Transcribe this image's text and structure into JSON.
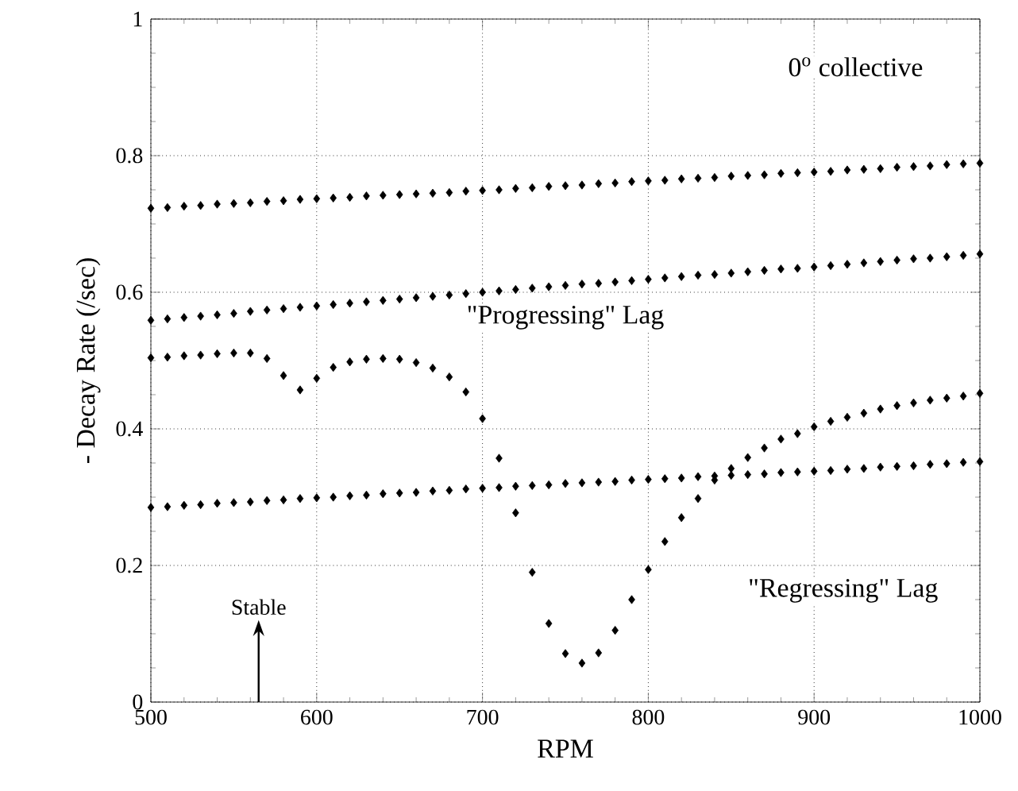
{
  "chart_data": {
    "type": "scatter",
    "xlabel": "RPM",
    "ylabel": "- Decay Rate (/sec)",
    "x": [
      500,
      510,
      520,
      530,
      540,
      550,
      560,
      570,
      580,
      590,
      600,
      610,
      620,
      630,
      640,
      650,
      660,
      670,
      680,
      690,
      700,
      710,
      720,
      730,
      740,
      750,
      760,
      770,
      780,
      790,
      800,
      810,
      820,
      830,
      840,
      850,
      860,
      870,
      880,
      890,
      900,
      910,
      920,
      930,
      940,
      950,
      960,
      970,
      980,
      990,
      1000
    ],
    "series": [
      {
        "color": "#000000",
        "values": [
          0.723,
          0.724,
          0.726,
          0.727,
          0.729,
          0.73,
          0.731,
          0.733,
          0.734,
          0.736,
          0.737,
          0.738,
          0.739,
          0.741,
          0.742,
          0.743,
          0.744,
          0.745,
          0.746,
          0.748,
          0.749,
          0.75,
          0.752,
          0.753,
          0.755,
          0.756,
          0.757,
          0.759,
          0.76,
          0.762,
          0.763,
          0.764,
          0.766,
          0.767,
          0.768,
          0.77,
          0.771,
          0.772,
          0.774,
          0.775,
          0.776,
          0.777,
          0.779,
          0.78,
          0.781,
          0.783,
          0.784,
          0.785,
          0.787,
          0.788,
          0.789
        ]
      },
      {
        "color": "#000000",
        "values": [
          0.559,
          0.561,
          0.563,
          0.565,
          0.567,
          0.569,
          0.572,
          0.574,
          0.576,
          0.578,
          0.58,
          0.582,
          0.584,
          0.586,
          0.588,
          0.59,
          0.592,
          0.594,
          0.596,
          0.598,
          0.6,
          0.602,
          0.604,
          0.606,
          0.608,
          0.61,
          0.612,
          0.613,
          0.615,
          0.617,
          0.619,
          0.621,
          0.623,
          0.625,
          0.626,
          0.628,
          0.63,
          0.632,
          0.634,
          0.635,
          0.637,
          0.639,
          0.641,
          0.643,
          0.645,
          0.647,
          0.649,
          0.65,
          0.652,
          0.654,
          0.656
        ]
      },
      {
        "color": "#000000",
        "values": [
          0.504,
          0.505,
          0.507,
          0.508,
          0.51,
          0.511,
          0.511,
          0.503,
          0.478,
          0.457,
          0.474,
          0.49,
          0.498,
          0.502,
          0.503,
          0.502,
          0.497,
          0.489,
          0.476,
          0.454,
          0.415,
          0.357,
          0.277,
          0.19,
          0.115,
          0.071,
          0.057,
          0.072,
          0.105,
          0.15,
          0.194,
          0.235,
          0.27,
          0.298,
          0.325,
          0.342,
          0.358,
          0.372,
          0.385,
          0.393,
          0.403,
          0.411,
          0.417,
          0.423,
          0.429,
          0.434,
          0.438,
          0.442,
          0.445,
          0.448,
          0.452
        ]
      },
      {
        "color": "#000000",
        "values": [
          0.285,
          0.286,
          0.288,
          0.289,
          0.291,
          0.292,
          0.293,
          0.295,
          0.296,
          0.298,
          0.299,
          0.3,
          0.302,
          0.303,
          0.305,
          0.306,
          0.307,
          0.309,
          0.31,
          0.312,
          0.313,
          0.314,
          0.316,
          0.317,
          0.318,
          0.32,
          0.321,
          0.322,
          0.323,
          0.325,
          0.326,
          0.327,
          0.328,
          0.33,
          0.331,
          0.332,
          0.333,
          0.334,
          0.336,
          0.337,
          0.338,
          0.339,
          0.341,
          0.342,
          0.344,
          0.345,
          0.346,
          0.348,
          0.349,
          0.351,
          0.352
        ]
      }
    ],
    "xlim": [
      500,
      1000
    ],
    "ylim": [
      0,
      1
    ],
    "xticks": [
      500,
      600,
      700,
      800,
      900,
      1000
    ],
    "yticks": [
      0,
      0.2,
      0.4,
      0.6,
      0.8,
      1
    ],
    "grid": true,
    "marker": "diamond",
    "annotations": [
      "0$^{o}$ collective",
      "\"Progressing\" Lag",
      "\"Regressing\" Lag",
      "Stable"
    ]
  }
}
